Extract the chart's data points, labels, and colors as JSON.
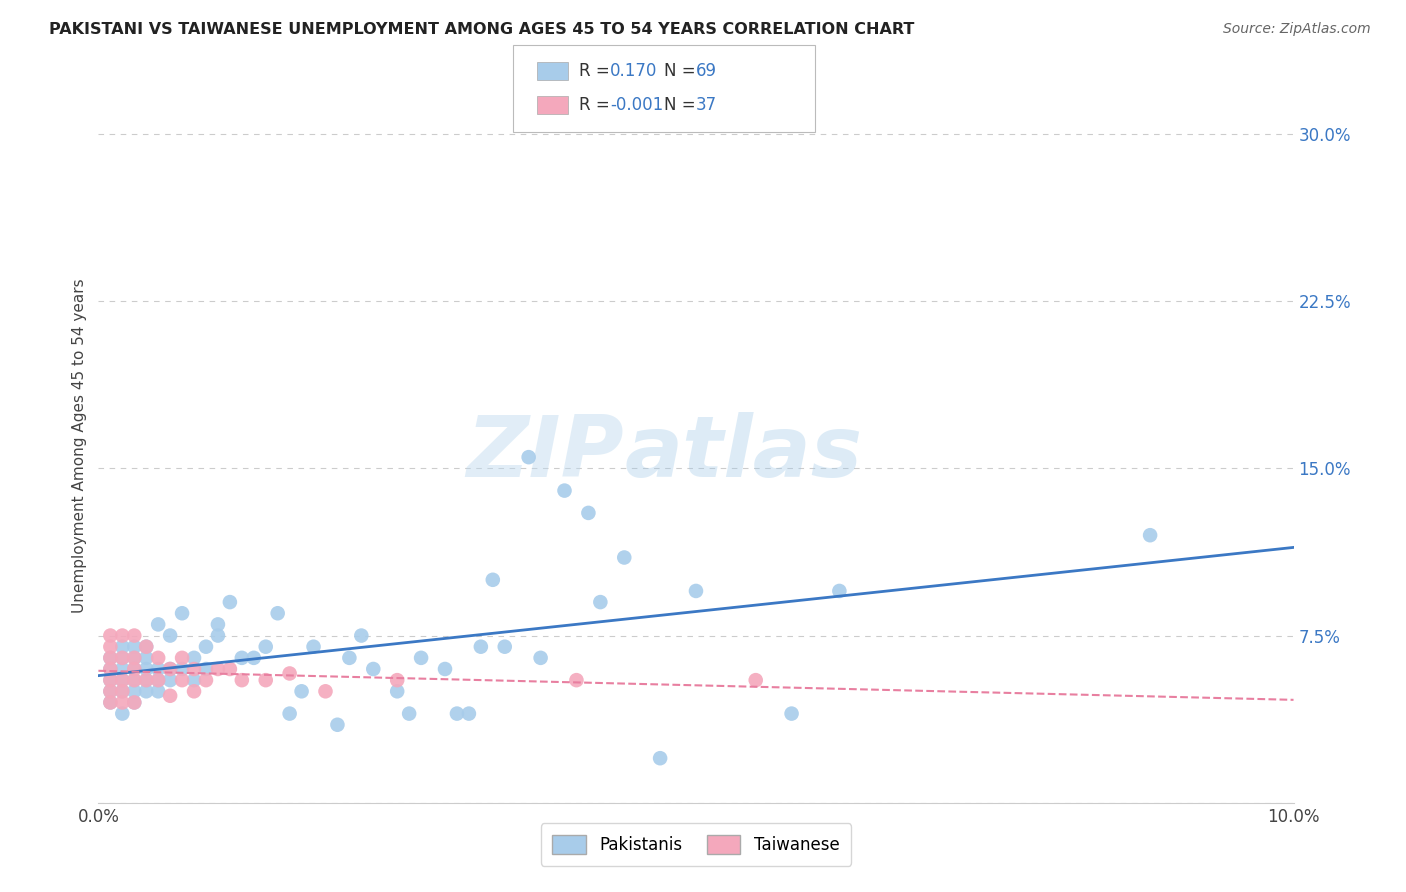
{
  "title": "PAKISTANI VS TAIWANESE UNEMPLOYMENT AMONG AGES 45 TO 54 YEARS CORRELATION CHART",
  "source": "Source: ZipAtlas.com",
  "ylabel": "Unemployment Among Ages 45 to 54 years",
  "xlim": [
    0.0,
    0.1
  ],
  "ylim": [
    0.0,
    0.32
  ],
  "xticks": [
    0.0,
    0.02,
    0.04,
    0.06,
    0.08,
    0.1
  ],
  "xticklabels": [
    "0.0%",
    "",
    "",
    "",
    "",
    "10.0%"
  ],
  "ytick_positions": [
    0.0,
    0.075,
    0.15,
    0.225,
    0.3
  ],
  "yticklabels": [
    "",
    "7.5%",
    "15.0%",
    "22.5%",
    "30.0%"
  ],
  "blue_color": "#A8CCEA",
  "pink_color": "#F4A8BC",
  "blue_line_color": "#3B78C4",
  "pink_line_color": "#E87FA0",
  "grid_color": "#CCCCCC",
  "background_color": "#FFFFFF",
  "watermark": "ZIPatlas",
  "pakistani_x": [
    0.001,
    0.001,
    0.001,
    0.001,
    0.001,
    0.002,
    0.002,
    0.002,
    0.002,
    0.002,
    0.002,
    0.003,
    0.003,
    0.003,
    0.003,
    0.003,
    0.003,
    0.004,
    0.004,
    0.004,
    0.004,
    0.004,
    0.005,
    0.005,
    0.005,
    0.005,
    0.006,
    0.006,
    0.006,
    0.007,
    0.007,
    0.008,
    0.008,
    0.009,
    0.009,
    0.01,
    0.01,
    0.011,
    0.012,
    0.013,
    0.014,
    0.015,
    0.016,
    0.017,
    0.018,
    0.02,
    0.021,
    0.022,
    0.023,
    0.025,
    0.026,
    0.027,
    0.029,
    0.03,
    0.031,
    0.032,
    0.033,
    0.034,
    0.036,
    0.037,
    0.039,
    0.041,
    0.042,
    0.044,
    0.047,
    0.05,
    0.058,
    0.062,
    0.088
  ],
  "pakistani_y": [
    0.055,
    0.05,
    0.06,
    0.045,
    0.065,
    0.05,
    0.055,
    0.06,
    0.065,
    0.04,
    0.07,
    0.05,
    0.055,
    0.06,
    0.065,
    0.045,
    0.07,
    0.05,
    0.055,
    0.06,
    0.065,
    0.07,
    0.05,
    0.055,
    0.06,
    0.08,
    0.055,
    0.06,
    0.075,
    0.06,
    0.085,
    0.055,
    0.065,
    0.06,
    0.07,
    0.075,
    0.08,
    0.09,
    0.065,
    0.065,
    0.07,
    0.085,
    0.04,
    0.05,
    0.07,
    0.035,
    0.065,
    0.075,
    0.06,
    0.05,
    0.04,
    0.065,
    0.06,
    0.04,
    0.04,
    0.07,
    0.1,
    0.07,
    0.155,
    0.065,
    0.14,
    0.13,
    0.09,
    0.11,
    0.02,
    0.095,
    0.04,
    0.095,
    0.12
  ],
  "taiwanese_x": [
    0.001,
    0.001,
    0.001,
    0.001,
    0.001,
    0.001,
    0.001,
    0.002,
    0.002,
    0.002,
    0.002,
    0.002,
    0.003,
    0.003,
    0.003,
    0.003,
    0.003,
    0.004,
    0.004,
    0.005,
    0.005,
    0.006,
    0.006,
    0.007,
    0.007,
    0.008,
    0.008,
    0.009,
    0.01,
    0.011,
    0.012,
    0.014,
    0.016,
    0.019,
    0.025,
    0.04,
    0.055
  ],
  "taiwanese_y": [
    0.075,
    0.07,
    0.065,
    0.06,
    0.055,
    0.05,
    0.045,
    0.075,
    0.065,
    0.055,
    0.05,
    0.045,
    0.075,
    0.065,
    0.06,
    0.055,
    0.045,
    0.07,
    0.055,
    0.065,
    0.055,
    0.06,
    0.048,
    0.065,
    0.055,
    0.06,
    0.05,
    0.055,
    0.06,
    0.06,
    0.055,
    0.055,
    0.058,
    0.05,
    0.055,
    0.055,
    0.055
  ]
}
